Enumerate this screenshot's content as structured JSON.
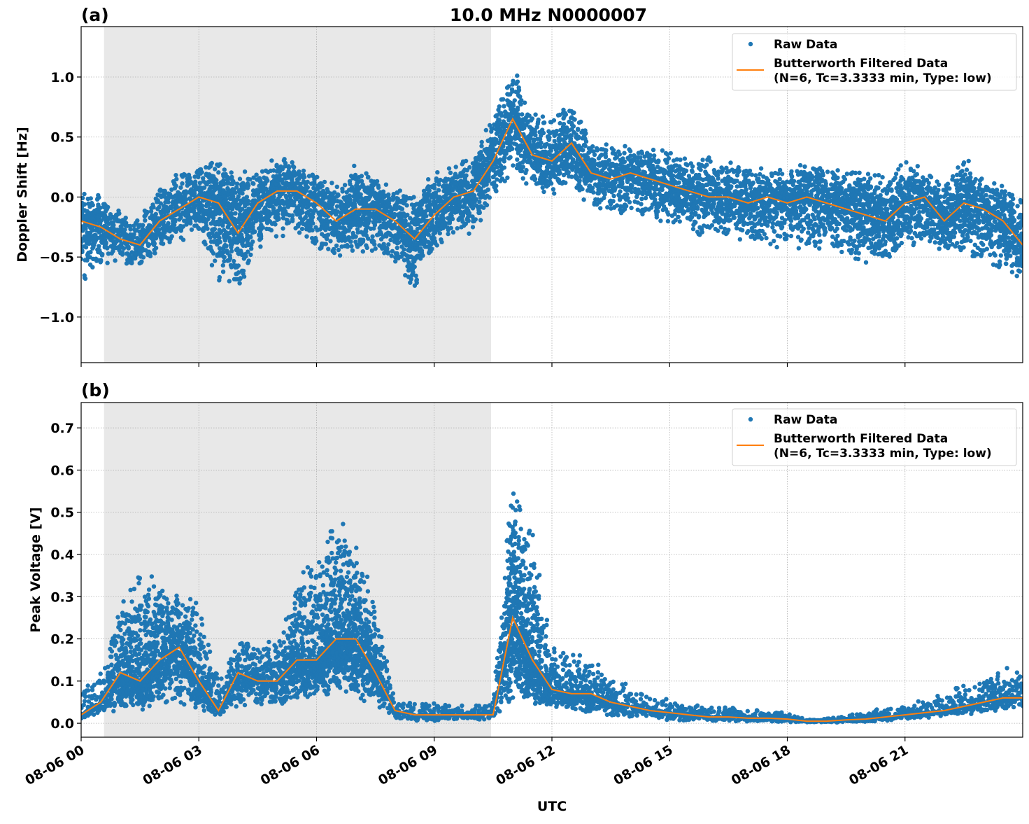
{
  "title": "10.0 MHz N0000007",
  "colors": {
    "raw": "#1f77b4",
    "filtered": "#ff7f0e",
    "shade": "#e8e8e8",
    "grid": "#b0b0b0"
  },
  "legend": {
    "placement": "upper-right",
    "raw_label": "Raw Data",
    "filtered_label_line1": "Butterworth Filtered Data",
    "filtered_label_line2": "(N=6, Tc=3.3333 min, Type: low)"
  },
  "xaxis": {
    "label": "UTC",
    "xlim": [
      "08-06 00:00",
      "08-07 00:00"
    ],
    "ticks": [
      "08-06 00:00",
      "08-06 03:00",
      "08-06 06:00",
      "08-06 09:00",
      "08-06 12:00",
      "08-06 15:00",
      "08-06 18:00",
      "08-06 21:00"
    ],
    "tick_labels": [
      "08-06 00",
      "08-06 03",
      "08-06 06",
      "08-06 09",
      "08-06 12",
      "08-06 15",
      "08-06 18",
      "08-06 21"
    ]
  },
  "shaded_interval": [
    "08-06 00:35",
    "08-06 10:27"
  ],
  "chart_data": [
    {
      "type": "scatter+line",
      "panel_label": "(a)",
      "ylabel": "Doppler Shift [Hz]",
      "ylim": [
        -1.38,
        1.42
      ],
      "yticks": [
        -1.0,
        -0.5,
        0.0,
        0.5,
        1.0
      ],
      "ytick_labels": [
        "−1.0",
        "−0.5",
        "0.0",
        "0.5",
        "1.0"
      ],
      "grid": true,
      "x": [
        "08-06 00:00",
        "08-06 00:30",
        "08-06 01:00",
        "08-06 01:30",
        "08-06 02:00",
        "08-06 02:30",
        "08-06 03:00",
        "08-06 03:30",
        "08-06 04:00",
        "08-06 04:30",
        "08-06 05:00",
        "08-06 05:30",
        "08-06 06:00",
        "08-06 06:30",
        "08-06 07:00",
        "08-06 07:30",
        "08-06 08:00",
        "08-06 08:30",
        "08-06 09:00",
        "08-06 09:30",
        "08-06 10:00",
        "08-06 10:30",
        "08-06 11:00",
        "08-06 11:30",
        "08-06 12:00",
        "08-06 12:30",
        "08-06 13:00",
        "08-06 13:30",
        "08-06 14:00",
        "08-06 14:30",
        "08-06 15:00",
        "08-06 15:30",
        "08-06 16:00",
        "08-06 16:30",
        "08-06 17:00",
        "08-06 17:30",
        "08-06 18:00",
        "08-06 18:30",
        "08-06 19:00",
        "08-06 19:30",
        "08-06 20:00",
        "08-06 20:30",
        "08-06 21:00",
        "08-06 21:30",
        "08-06 22:00",
        "08-06 22:30",
        "08-06 23:00",
        "08-06 23:30",
        "08-07 00:00"
      ],
      "series": [
        {
          "name": "Butterworth Filtered Data",
          "values": [
            -0.2,
            -0.25,
            -0.35,
            -0.4,
            -0.2,
            -0.1,
            0.0,
            -0.05,
            -0.3,
            -0.05,
            0.05,
            0.05,
            -0.05,
            -0.2,
            -0.1,
            -0.1,
            -0.2,
            -0.35,
            -0.15,
            0.0,
            0.05,
            0.3,
            0.65,
            0.35,
            0.3,
            0.45,
            0.2,
            0.15,
            0.2,
            0.15,
            0.1,
            0.05,
            0.0,
            0.0,
            -0.05,
            0.0,
            -0.05,
            0.0,
            -0.05,
            -0.1,
            -0.15,
            -0.2,
            -0.05,
            0.0,
            -0.2,
            -0.05,
            -0.1,
            -0.2,
            -0.4
          ]
        },
        {
          "name": "Raw Data",
          "low": [
            -0.8,
            -0.6,
            -0.55,
            -0.6,
            -0.45,
            -0.4,
            -0.35,
            -0.7,
            -0.85,
            -0.45,
            -0.35,
            -0.35,
            -0.45,
            -0.5,
            -0.5,
            -0.5,
            -0.55,
            -0.8,
            -0.45,
            -0.35,
            -0.3,
            -0.05,
            0.2,
            0.05,
            0.0,
            0.1,
            -0.1,
            -0.15,
            -0.15,
            -0.2,
            -0.25,
            -0.3,
            -0.35,
            -0.35,
            -0.4,
            -0.4,
            -0.45,
            -0.45,
            -0.45,
            -0.5,
            -0.55,
            -0.55,
            -0.45,
            -0.4,
            -0.55,
            -0.5,
            -0.6,
            -0.65,
            -0.75
          ],
          "high": [
            0.05,
            0.05,
            -0.1,
            -0.15,
            0.15,
            0.2,
            0.3,
            0.35,
            0.2,
            0.25,
            0.35,
            0.3,
            0.2,
            0.1,
            0.3,
            0.2,
            0.1,
            0.05,
            0.25,
            0.3,
            0.4,
            0.7,
            1.1,
            0.7,
            0.7,
            0.8,
            0.5,
            0.45,
            0.45,
            0.4,
            0.4,
            0.35,
            0.35,
            0.3,
            0.3,
            0.25,
            0.25,
            0.3,
            0.25,
            0.25,
            0.25,
            0.2,
            0.3,
            0.25,
            0.15,
            0.35,
            0.15,
            0.1,
            0.0
          ]
        }
      ]
    },
    {
      "type": "scatter+line",
      "panel_label": "(b)",
      "ylabel": "Peak Voltage [V]",
      "ylim": [
        -0.033,
        0.76
      ],
      "yticks": [
        0.0,
        0.1,
        0.2,
        0.3,
        0.4,
        0.5,
        0.6,
        0.7
      ],
      "ytick_labels": [
        "0.0",
        "0.1",
        "0.2",
        "0.3",
        "0.4",
        "0.5",
        "0.6",
        "0.7"
      ],
      "grid": true,
      "x": [
        "08-06 00:00",
        "08-06 00:30",
        "08-06 01:00",
        "08-06 01:30",
        "08-06 02:00",
        "08-06 02:30",
        "08-06 03:00",
        "08-06 03:30",
        "08-06 04:00",
        "08-06 04:30",
        "08-06 05:00",
        "08-06 05:30",
        "08-06 06:00",
        "08-06 06:30",
        "08-06 07:00",
        "08-06 07:30",
        "08-06 08:00",
        "08-06 08:30",
        "08-06 09:00",
        "08-06 09:30",
        "08-06 10:00",
        "08-06 10:30",
        "08-06 11:00",
        "08-06 11:30",
        "08-06 12:00",
        "08-06 12:30",
        "08-06 13:00",
        "08-06 13:30",
        "08-06 14:00",
        "08-06 14:30",
        "08-06 15:00",
        "08-06 15:30",
        "08-06 16:00",
        "08-06 16:30",
        "08-06 17:00",
        "08-06 17:30",
        "08-06 18:00",
        "08-06 18:30",
        "08-06 19:00",
        "08-06 19:30",
        "08-06 20:00",
        "08-06 20:30",
        "08-06 21:00",
        "08-06 21:30",
        "08-06 22:00",
        "08-06 22:30",
        "08-06 23:00",
        "08-06 23:30",
        "08-07 00:00"
      ],
      "series": [
        {
          "name": "Butterworth Filtered Data",
          "values": [
            0.02,
            0.05,
            0.12,
            0.1,
            0.15,
            0.18,
            0.1,
            0.03,
            0.12,
            0.1,
            0.1,
            0.15,
            0.15,
            0.2,
            0.2,
            0.12,
            0.03,
            0.02,
            0.02,
            0.02,
            0.02,
            0.02,
            0.25,
            0.15,
            0.08,
            0.07,
            0.07,
            0.05,
            0.04,
            0.03,
            0.025,
            0.02,
            0.015,
            0.015,
            0.012,
            0.012,
            0.01,
            0.005,
            0.005,
            0.008,
            0.01,
            0.015,
            0.02,
            0.025,
            0.03,
            0.04,
            0.05,
            0.06,
            0.06
          ]
        },
        {
          "name": "Raw Data",
          "low": [
            0.01,
            0.02,
            0.03,
            0.03,
            0.04,
            0.04,
            0.03,
            0.015,
            0.04,
            0.04,
            0.04,
            0.05,
            0.06,
            0.07,
            0.06,
            0.04,
            0.01,
            0.005,
            0.005,
            0.005,
            0.005,
            0.01,
            0.06,
            0.04,
            0.03,
            0.02,
            0.02,
            0.015,
            0.01,
            0.01,
            0.005,
            0.005,
            0.003,
            0.003,
            0.003,
            0.003,
            0.002,
            0.002,
            0.002,
            0.002,
            0.003,
            0.005,
            0.008,
            0.01,
            0.015,
            0.02,
            0.025,
            0.03,
            0.03
          ],
          "high": [
            0.08,
            0.12,
            0.3,
            0.4,
            0.35,
            0.3,
            0.3,
            0.1,
            0.2,
            0.2,
            0.2,
            0.35,
            0.4,
            0.5,
            0.45,
            0.3,
            0.06,
            0.05,
            0.05,
            0.045,
            0.045,
            0.05,
            0.6,
            0.45,
            0.2,
            0.18,
            0.15,
            0.12,
            0.09,
            0.07,
            0.055,
            0.045,
            0.04,
            0.04,
            0.035,
            0.03,
            0.025,
            0.01,
            0.012,
            0.02,
            0.03,
            0.04,
            0.05,
            0.06,
            0.08,
            0.1,
            0.12,
            0.14,
            0.13
          ]
        }
      ]
    }
  ]
}
